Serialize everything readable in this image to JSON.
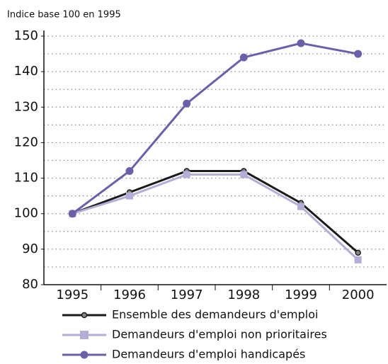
{
  "chart_data": {
    "type": "line",
    "y_axis_label": "Indice base 100 en 1995",
    "categories": [
      "1995",
      "1996",
      "1997",
      "1998",
      "1999",
      "2000"
    ],
    "series": [
      {
        "name": "Ensemble des demandeurs d'emploi",
        "color": "#1a1a1a",
        "marker": "circle",
        "values": [
          100,
          106,
          112,
          112,
          103,
          89
        ]
      },
      {
        "name": "Demandeurs d'emploi non prioritaires",
        "color": "#b3aed8",
        "marker": "square",
        "values": [
          100,
          105,
          111,
          111,
          102,
          87
        ]
      },
      {
        "name": "Demandeurs d'emploi handicapés",
        "color": "#6a60aa",
        "marker": "circle",
        "values": [
          100,
          112,
          131,
          144,
          148,
          145
        ]
      }
    ],
    "ylim": [
      80,
      150
    ],
    "yticks": [
      80,
      90,
      100,
      110,
      120,
      130,
      140,
      150
    ],
    "grid": true
  }
}
